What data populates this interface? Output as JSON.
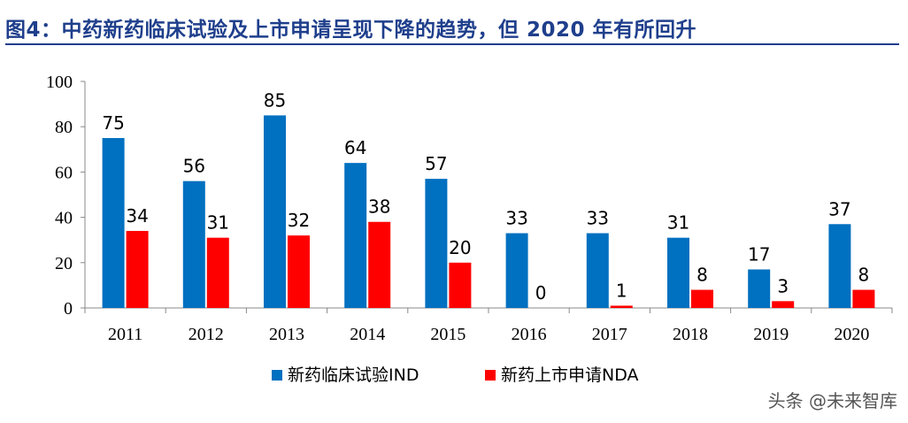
{
  "header": {
    "title": "图4：中药新药临床试验及上市申请呈现下降的趋势，但 2020 年有所回升"
  },
  "watermark": "头条 @未来智库",
  "colors": {
    "ind": "#0070c0",
    "nda": "#ff0000",
    "title": "#1f3f8c"
  },
  "chart_data": {
    "type": "bar",
    "title": "",
    "xlabel": "",
    "ylabel": "",
    "ylim": [
      0,
      100
    ],
    "yticks": [
      0,
      20,
      40,
      60,
      80,
      100
    ],
    "categories": [
      "2011",
      "2012",
      "2013",
      "2014",
      "2015",
      "2016",
      "2017",
      "2018",
      "2019",
      "2020"
    ],
    "series": [
      {
        "name": "新药临床试验IND",
        "color": "#0070c0",
        "values": [
          75,
          56,
          85,
          64,
          57,
          33,
          33,
          31,
          17,
          37
        ]
      },
      {
        "name": "新药上市申请NDA",
        "color": "#ff0000",
        "values": [
          34,
          31,
          32,
          38,
          20,
          0,
          1,
          8,
          3,
          8
        ]
      }
    ],
    "legend": "bottom-center",
    "grid": false
  }
}
